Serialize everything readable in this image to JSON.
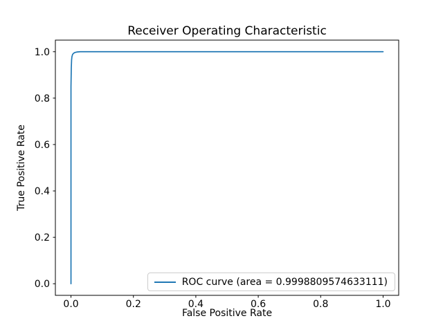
{
  "chart_data": {
    "type": "line",
    "title": "Receiver Operating Characteristic",
    "xlabel": "False Positive Rate",
    "ylabel": "True Positive Rate",
    "xlim": [
      -0.05,
      1.05
    ],
    "ylim": [
      -0.05,
      1.05
    ],
    "xticks": [
      0.0,
      0.2,
      0.4,
      0.6,
      0.8,
      1.0
    ],
    "yticks": [
      0.0,
      0.2,
      0.4,
      0.6,
      0.8,
      1.0
    ],
    "grid": false,
    "background": "#ffffff",
    "axes_color": "#000000",
    "legend": {
      "position": "lower right",
      "entries": [
        {
          "label": "ROC curve (area = 0.9998809574633111)",
          "color": "#1f77b4"
        }
      ]
    },
    "series": [
      {
        "name": "ROC curve",
        "color": "#1f77b4",
        "area": "0.9998809574633111",
        "points": [
          [
            0.0,
            0.0
          ],
          [
            0.0,
            0.85
          ],
          [
            0.001,
            0.93
          ],
          [
            0.002,
            0.965
          ],
          [
            0.003,
            0.978
          ],
          [
            0.005,
            0.988
          ],
          [
            0.008,
            0.993
          ],
          [
            0.013,
            0.997
          ],
          [
            0.02,
            0.999
          ],
          [
            0.03,
            1.0
          ],
          [
            1.0,
            1.0
          ]
        ]
      }
    ]
  }
}
